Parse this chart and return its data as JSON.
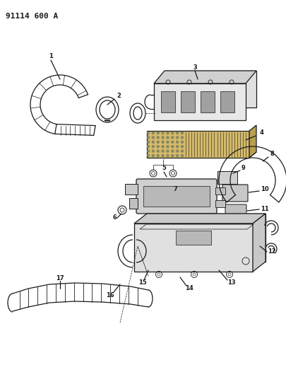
{
  "title": "91114 600 A",
  "background_color": "#ffffff",
  "line_color": "#1a1a1a",
  "figsize": [
    4.05,
    5.33
  ],
  "dpi": 100,
  "label_fs": 6.0
}
